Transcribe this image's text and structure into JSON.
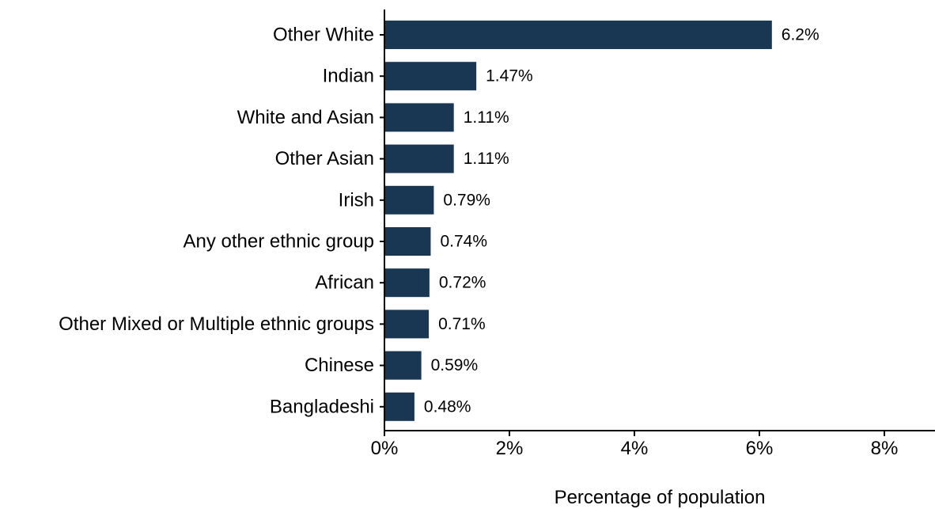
{
  "chart_data": {
    "type": "bar",
    "orientation": "horizontal",
    "categories": [
      "Other White",
      "Indian",
      "White and Asian",
      "Other Asian",
      "Irish",
      "Any other ethnic group",
      "African",
      "Other Mixed or Multiple ethnic groups",
      "Chinese",
      "Bangladeshi"
    ],
    "values": [
      6.2,
      1.47,
      1.11,
      1.11,
      0.79,
      0.74,
      0.72,
      0.71,
      0.59,
      0.48
    ],
    "value_labels": [
      "6.2%",
      "1.47%",
      "1.11%",
      "1.11%",
      "0.79%",
      "0.74%",
      "0.72%",
      "0.71%",
      "0.59%",
      "0.48%"
    ],
    "xlabel": "Percentage of population",
    "ylabel": "",
    "xlim": [
      0,
      8.8
    ],
    "xticks": [
      0,
      2,
      4,
      6,
      8
    ],
    "xtick_labels": [
      "0%",
      "2%",
      "4%",
      "6%",
      "8%"
    ],
    "grid": false,
    "legend": "none",
    "bar_color": "#193752"
  }
}
